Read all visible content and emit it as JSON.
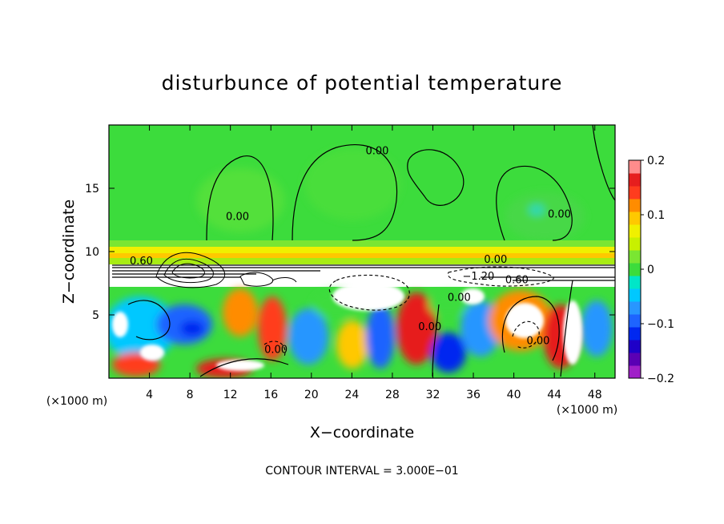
{
  "chart_data": {
    "type": "heatmap",
    "title": "disturbunce of potential temperature",
    "xlabel": "X−coordinate",
    "ylabel": "Z−coordinate",
    "x_unit": "(×1000 m)",
    "y_unit": "(×1000 m)",
    "xlim": [
      0,
      50
    ],
    "ylim": [
      0,
      20
    ],
    "x_ticks": [
      "4",
      "8",
      "12",
      "16",
      "20",
      "24",
      "28",
      "32",
      "36",
      "40",
      "44",
      "48"
    ],
    "x_tick_values": [
      4,
      8,
      12,
      16,
      20,
      24,
      28,
      32,
      36,
      40,
      44,
      48
    ],
    "y_ticks": [
      "5",
      "10",
      "15"
    ],
    "y_tick_values": [
      5,
      10,
      15
    ],
    "colorbar": {
      "range": [
        -0.2,
        0.2
      ],
      "tick_labels": [
        "−0.2",
        "−0.1",
        "0",
        "0.1",
        "0.2"
      ],
      "tick_values": [
        -0.2,
        -0.1,
        0,
        0.1,
        0.2
      ],
      "levels": [
        {
          "value": -0.2,
          "color": "#a020c8"
        },
        {
          "value": -0.175,
          "color": "#5a00b4"
        },
        {
          "value": -0.15,
          "color": "#1e00c8"
        },
        {
          "value": -0.125,
          "color": "#0028f0"
        },
        {
          "value": -0.1,
          "color": "#1e64ff"
        },
        {
          "value": -0.075,
          "color": "#2896ff"
        },
        {
          "value": -0.05,
          "color": "#00c8ff"
        },
        {
          "value": -0.025,
          "color": "#00e6c8"
        },
        {
          "value": 0.0,
          "color": "#3cdc3c"
        },
        {
          "value": 0.025,
          "color": "#7ae632"
        },
        {
          "value": 0.05,
          "color": "#c8f000"
        },
        {
          "value": 0.075,
          "color": "#f0f000"
        },
        {
          "value": 0.1,
          "color": "#ffc800"
        },
        {
          "value": 0.125,
          "color": "#ff8c00"
        },
        {
          "value": 0.15,
          "color": "#ff3c1e"
        },
        {
          "value": 0.175,
          "color": "#e61e1e"
        },
        {
          "value": 0.2,
          "color": "#ff8c8c"
        }
      ]
    },
    "contour_labels": [
      {
        "text": "0.00",
        "x": 26.5,
        "z": 17.7
      },
      {
        "text": "0.00",
        "x": 12.7,
        "z": 12.5
      },
      {
        "text": "0.00",
        "x": 44.5,
        "z": 12.7
      },
      {
        "text": "0.60",
        "x": 3.2,
        "z": 9.0
      },
      {
        "text": "0.00",
        "x": 38.2,
        "z": 9.1
      },
      {
        "text": "−1.20",
        "x": 36.5,
        "z": 7.8
      },
      {
        "text": "0.60",
        "x": 40.3,
        "z": 7.5
      },
      {
        "text": "0.00",
        "x": 34.6,
        "z": 6.1
      },
      {
        "text": "0.00",
        "x": 31.7,
        "z": 3.8
      },
      {
        "text": "0.00",
        "x": 16.5,
        "z": 2.0
      },
      {
        "text": "0.00",
        "x": 42.4,
        "z": 2.7
      }
    ],
    "background_value": 0.0,
    "grid": false,
    "legend": "right"
  },
  "footer": "CONTOUR INTERVAL = 3.000E−01"
}
